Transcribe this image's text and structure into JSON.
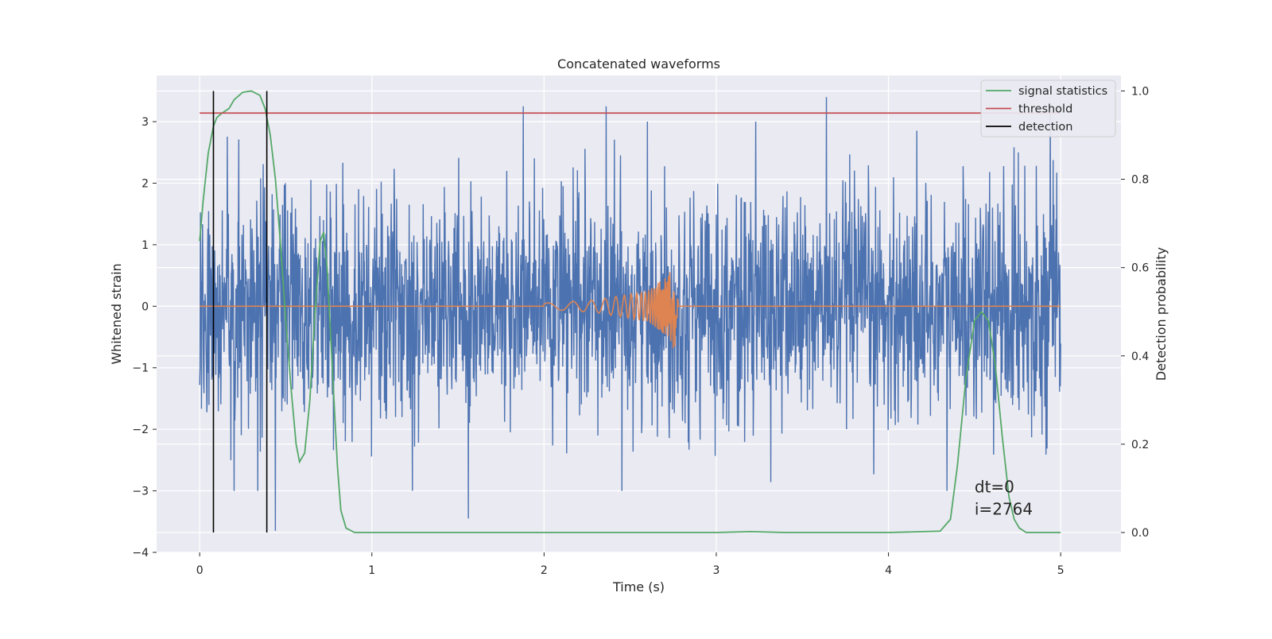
{
  "chart_data": {
    "type": "line",
    "title": "Concatenated waveforms",
    "xlabel": "Time (s)",
    "ylabel": "Whitened strain",
    "y2label": "Detection probability",
    "xlim": [
      -0.25,
      5.35
    ],
    "ylim": [
      -4,
      3.75
    ],
    "y2lim": [
      -0.045,
      1.035
    ],
    "xticks": [
      "0",
      "1",
      "2",
      "3",
      "4",
      "5"
    ],
    "xtick_values": [
      0,
      1,
      2,
      3,
      4,
      5
    ],
    "yticks": [
      "−4",
      "−3",
      "−2",
      "−1",
      "0",
      "1",
      "2",
      "3"
    ],
    "ytick_values": [
      -4,
      -3,
      -2,
      -1,
      0,
      1,
      2,
      3
    ],
    "y2ticks": [
      "0.0",
      "0.2",
      "0.4",
      "0.6",
      "0.8",
      "1.0"
    ],
    "y2tick_values": [
      0,
      0.2,
      0.4,
      0.6,
      0.8,
      1.0
    ],
    "grid": true,
    "legend_position": "top-right",
    "series": [
      {
        "name": "",
        "axis": "left",
        "color": "#4c72b0",
        "kind": "noise",
        "x_range": [
          0,
          5
        ],
        "typical_range": [
          -2.0,
          2.0
        ],
        "extremes": [
          {
            "x": 1.88,
            "y": 3.25
          },
          {
            "x": 2.36,
            "y": 3.25
          },
          {
            "x": 3.64,
            "y": 3.4
          },
          {
            "x": 4.94,
            "y": 3.25
          },
          {
            "x": 1.56,
            "y": -3.45
          },
          {
            "x": 0.44,
            "y": -3.65
          },
          {
            "x": 0.2,
            "y": -3.0
          },
          {
            "x": 4.34,
            "y": -3.0
          }
        ]
      },
      {
        "name": "",
        "axis": "left",
        "color": "#dd8452",
        "kind": "chirp",
        "x": [
          0,
          2.0,
          2.3,
          2.6,
          2.72,
          2.76,
          2.78,
          5
        ],
        "amplitude": [
          0,
          0.05,
          0.1,
          0.25,
          0.5,
          0.75,
          0,
          0
        ]
      },
      {
        "name": "signal statistics",
        "axis": "right",
        "color": "#55a868",
        "x": [
          0,
          0.02,
          0.05,
          0.08,
          0.1,
          0.13,
          0.17,
          0.2,
          0.25,
          0.3,
          0.35,
          0.38,
          0.41,
          0.44,
          0.47,
          0.5,
          0.53,
          0.56,
          0.58,
          0.61,
          0.64,
          0.67,
          0.7,
          0.72,
          0.74,
          0.76,
          0.78,
          0.8,
          0.82,
          0.85,
          0.9,
          1.5,
          2.5,
          3.0,
          3.2,
          3.4,
          4.0,
          4.3,
          4.36,
          4.4,
          4.45,
          4.5,
          4.54,
          4.58,
          4.62,
          4.66,
          4.7,
          4.73,
          4.76,
          4.8,
          4.9,
          5.0
        ],
        "values": [
          0.66,
          0.75,
          0.86,
          0.92,
          0.94,
          0.95,
          0.96,
          0.98,
          0.997,
          1.0,
          0.99,
          0.96,
          0.9,
          0.8,
          0.65,
          0.48,
          0.33,
          0.2,
          0.16,
          0.18,
          0.3,
          0.5,
          0.66,
          0.68,
          0.6,
          0.45,
          0.3,
          0.15,
          0.05,
          0.01,
          0.0,
          0.0,
          0.0,
          0.0,
          0.002,
          0.0,
          0.0,
          0.003,
          0.03,
          0.15,
          0.35,
          0.48,
          0.5,
          0.48,
          0.38,
          0.22,
          0.08,
          0.03,
          0.01,
          0.0,
          0.0,
          0.0
        ]
      },
      {
        "name": "threshold",
        "axis": "right",
        "color": "#c44e52",
        "x": [
          0,
          5
        ],
        "values": [
          0.95,
          0.95
        ]
      },
      {
        "name": "detection",
        "axis": "right",
        "color": "#000000",
        "kind": "vlines",
        "x": [
          0.08,
          0.39
        ],
        "range": [
          0,
          1.0
        ]
      }
    ],
    "annotation": {
      "line1": "dt=0",
      "line2": "i=2764",
      "x": 4.5,
      "y": -3.0
    }
  }
}
